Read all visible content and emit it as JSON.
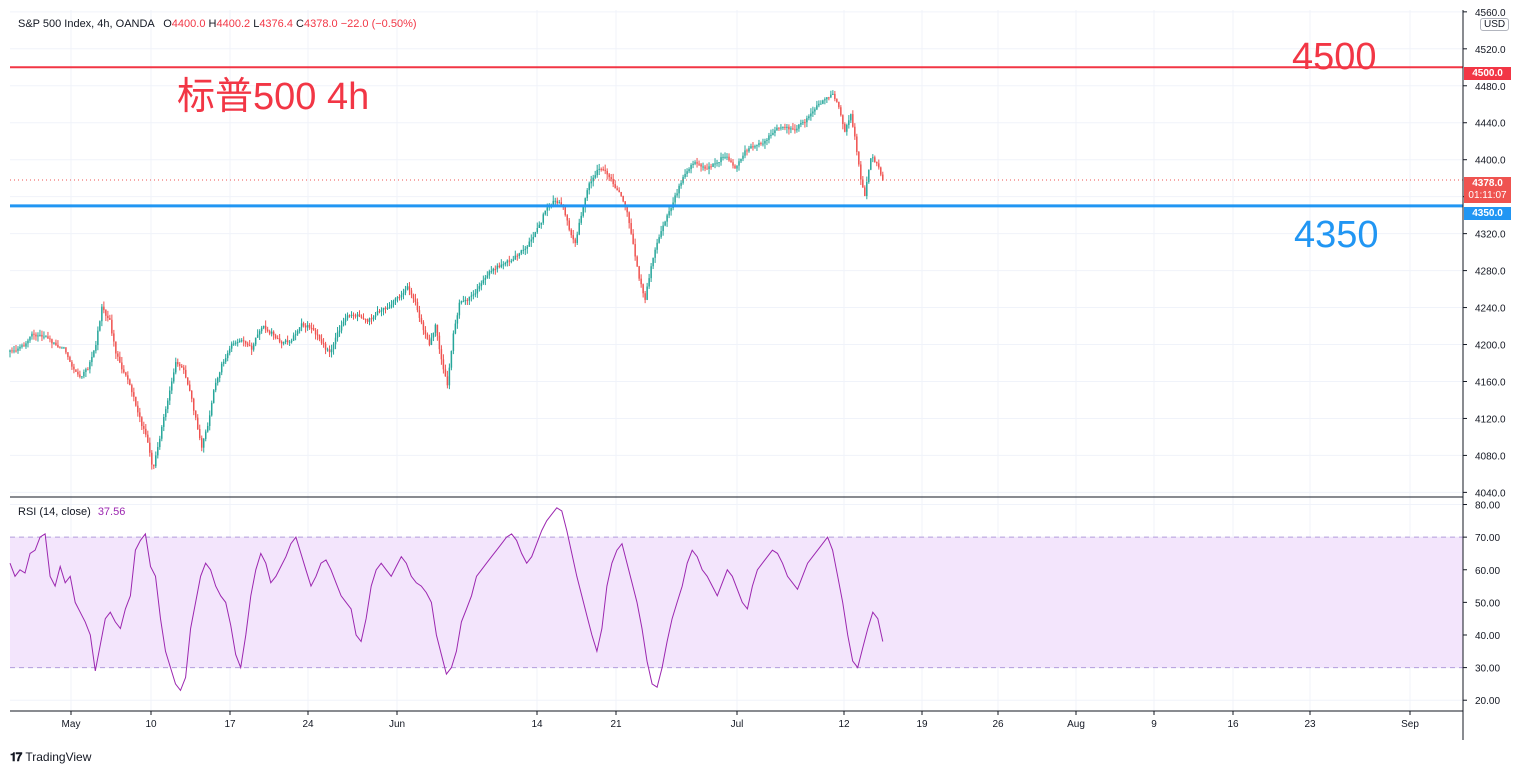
{
  "header": {
    "symbol": "S&P 500 Index, 4h, OANDA",
    "open_label": "O",
    "open": "4400.0",
    "high_label": "H",
    "high": "4400.2",
    "low_label": "L",
    "low": "4376.4",
    "close_label": "C",
    "close": "4378.0",
    "change": "−22.0 (−0.50%)"
  },
  "currency": "USD",
  "annotations": {
    "title_cn": "标普500 4h",
    "upper_level_label": "4500",
    "lower_level_label": "4350"
  },
  "badges": {
    "upper_level": "4500.0",
    "lower_level": "4350.0",
    "last_price": "4378.0",
    "countdown": "01:11:07"
  },
  "rsi_header": {
    "name": "RSI (14, close)",
    "value": "37.56"
  },
  "brand": {
    "name": "TradingView"
  },
  "colors": {
    "up": "#26a69a",
    "down": "#ef5350",
    "upper_line": "#f23645",
    "lower_line": "#2196f3",
    "rsi_line": "#9c27b0",
    "rsi_band": "#f3e5fc"
  },
  "chart_data": [
    {
      "type": "candlestick",
      "title": "S&P 500 Index, 4h, OANDA",
      "x_ticks": [
        "May",
        "10",
        "17",
        "24",
        "Jun",
        "14",
        "21",
        "Jul",
        "12",
        "19",
        "26",
        "Aug",
        "9",
        "16",
        "23",
        "Sep"
      ],
      "y_ticks": [
        4040,
        4080,
        4120,
        4160,
        4200,
        4240,
        4280,
        4320,
        4360,
        4400,
        4440,
        4480,
        4520,
        4560
      ],
      "y_tick_labels": [
        "4040.0",
        "4080.0",
        "4120.0",
        "4160.0",
        "4200.0",
        "4240.0",
        "4280.0",
        "4320.0",
        "4360.0",
        "4400.0",
        "4440.0",
        "4480.0",
        "4520.0",
        "4560.0"
      ],
      "ylim": [
        4035,
        4562
      ],
      "horizontal_lines": [
        {
          "value": 4500.0,
          "color": "#f23645"
        },
        {
          "value": 4350.0,
          "color": "#2196f3"
        }
      ],
      "last_price": 4378.0,
      "close_path": [
        [
          0,
          4192
        ],
        [
          14,
          4198
        ],
        [
          22,
          4212
        ],
        [
          35,
          4208
        ],
        [
          45,
          4200
        ],
        [
          55,
          4195
        ],
        [
          62,
          4178
        ],
        [
          70,
          4165
        ],
        [
          78,
          4175
        ],
        [
          86,
          4200
        ],
        [
          92,
          4240
        ],
        [
          100,
          4225
        ],
        [
          106,
          4190
        ],
        [
          114,
          4170
        ],
        [
          122,
          4150
        ],
        [
          130,
          4120
        ],
        [
          138,
          4095
        ],
        [
          143,
          4062
        ],
        [
          150,
          4100
        ],
        [
          158,
          4140
        ],
        [
          166,
          4180
        ],
        [
          174,
          4172
        ],
        [
          180,
          4150
        ],
        [
          186,
          4120
        ],
        [
          192,
          4090
        ],
        [
          198,
          4112
        ],
        [
          204,
          4150
        ],
        [
          212,
          4178
        ],
        [
          222,
          4200
        ],
        [
          232,
          4205
        ],
        [
          242,
          4196
        ],
        [
          252,
          4220
        ],
        [
          262,
          4212
        ],
        [
          272,
          4202
        ],
        [
          282,
          4205
        ],
        [
          292,
          4222
        ],
        [
          302,
          4218
        ],
        [
          312,
          4202
        ],
        [
          320,
          4190
        ],
        [
          328,
          4212
        ],
        [
          338,
          4230
        ],
        [
          348,
          4232
        ],
        [
          358,
          4225
        ],
        [
          368,
          4235
        ],
        [
          378,
          4240
        ],
        [
          388,
          4250
        ],
        [
          398,
          4262
        ],
        [
          406,
          4245
        ],
        [
          414,
          4215
        ],
        [
          420,
          4200
        ],
        [
          426,
          4220
        ],
        [
          432,
          4185
        ],
        [
          438,
          4155
        ],
        [
          444,
          4210
        ],
        [
          450,
          4245
        ],
        [
          460,
          4250
        ],
        [
          470,
          4262
        ],
        [
          480,
          4278
        ],
        [
          490,
          4285
        ],
        [
          500,
          4290
        ],
        [
          510,
          4298
        ],
        [
          520,
          4310
        ],
        [
          530,
          4328
        ],
        [
          538,
          4350
        ],
        [
          546,
          4356
        ],
        [
          554,
          4348
        ],
        [
          560,
          4325
        ],
        [
          566,
          4310
        ],
        [
          572,
          4340
        ],
        [
          580,
          4375
        ],
        [
          590,
          4390
        ],
        [
          598,
          4385
        ],
        [
          606,
          4370
        ],
        [
          612,
          4360
        ],
        [
          618,
          4345
        ],
        [
          624,
          4310
        ],
        [
          630,
          4270
        ],
        [
          636,
          4250
        ],
        [
          642,
          4285
        ],
        [
          650,
          4318
        ],
        [
          658,
          4338
        ],
        [
          666,
          4360
        ],
        [
          676,
          4385
        ],
        [
          686,
          4398
        ],
        [
          696,
          4390
        ],
        [
          706,
          4395
        ],
        [
          716,
          4405
        ],
        [
          726,
          4390
        ],
        [
          736,
          4410
        ],
        [
          746,
          4415
        ],
        [
          756,
          4420
        ],
        [
          766,
          4432
        ],
        [
          776,
          4436
        ],
        [
          786,
          4432
        ],
        [
          796,
          4442
        ],
        [
          806,
          4455
        ],
        [
          816,
          4465
        ],
        [
          824,
          4473
        ],
        [
          830,
          4456
        ],
        [
          836,
          4432
        ],
        [
          842,
          4450
        ],
        [
          848,
          4410
        ],
        [
          852,
          4378
        ],
        [
          856,
          4362
        ],
        [
          862,
          4402
        ],
        [
          868,
          4398
        ],
        [
          874,
          4378
        ]
      ],
      "xlim": [
        0,
        1455
      ]
    },
    {
      "type": "line",
      "title": "RSI (14, close)",
      "y_ticks": [
        20,
        30,
        40,
        50,
        60,
        70,
        80
      ],
      "y_tick_labels": [
        "20.00",
        "30.00",
        "40.00",
        "50.00",
        "60.00",
        "70.00",
        "80.00"
      ],
      "ylim": [
        17,
        82
      ],
      "band": [
        30,
        70
      ],
      "last_value": 37.56,
      "series": [
        {
          "values": [
            62,
            58,
            60,
            59,
            65,
            66,
            70,
            71,
            58,
            55,
            61,
            56,
            58,
            50,
            47,
            44,
            40,
            29,
            37,
            45,
            47,
            44,
            42,
            48,
            52,
            66,
            69,
            71,
            61,
            58,
            45,
            35,
            30,
            25,
            23,
            27,
            42,
            50,
            58,
            62,
            60,
            55,
            52,
            50,
            43,
            34,
            30,
            40,
            52,
            60,
            65,
            62,
            56,
            58,
            61,
            64,
            68,
            70,
            65,
            60,
            55,
            58,
            62,
            63,
            60,
            56,
            52,
            50,
            48,
            40,
            38,
            45,
            55,
            60,
            62,
            60,
            58,
            61,
            64,
            62,
            58,
            56,
            55,
            53,
            50,
            40,
            34,
            28,
            30,
            35,
            44,
            48,
            52,
            58,
            60,
            62,
            64,
            66,
            68,
            70,
            71,
            69,
            65,
            62,
            64,
            68,
            72,
            75,
            77,
            79,
            78,
            72,
            65,
            58,
            52,
            46,
            40,
            35,
            42,
            55,
            62,
            66,
            68,
            62,
            56,
            50,
            42,
            32,
            25,
            24,
            30,
            38,
            45,
            50,
            55,
            62,
            66,
            64,
            60,
            58,
            55,
            52,
            56,
            60,
            58,
            54,
            50,
            48,
            55,
            60,
            62,
            64,
            66,
            65,
            62,
            58,
            56,
            54,
            58,
            62,
            64,
            66,
            68,
            70,
            66,
            58,
            50,
            40,
            32,
            30,
            36,
            42,
            47,
            45,
            38
          ]
        }
      ]
    }
  ]
}
